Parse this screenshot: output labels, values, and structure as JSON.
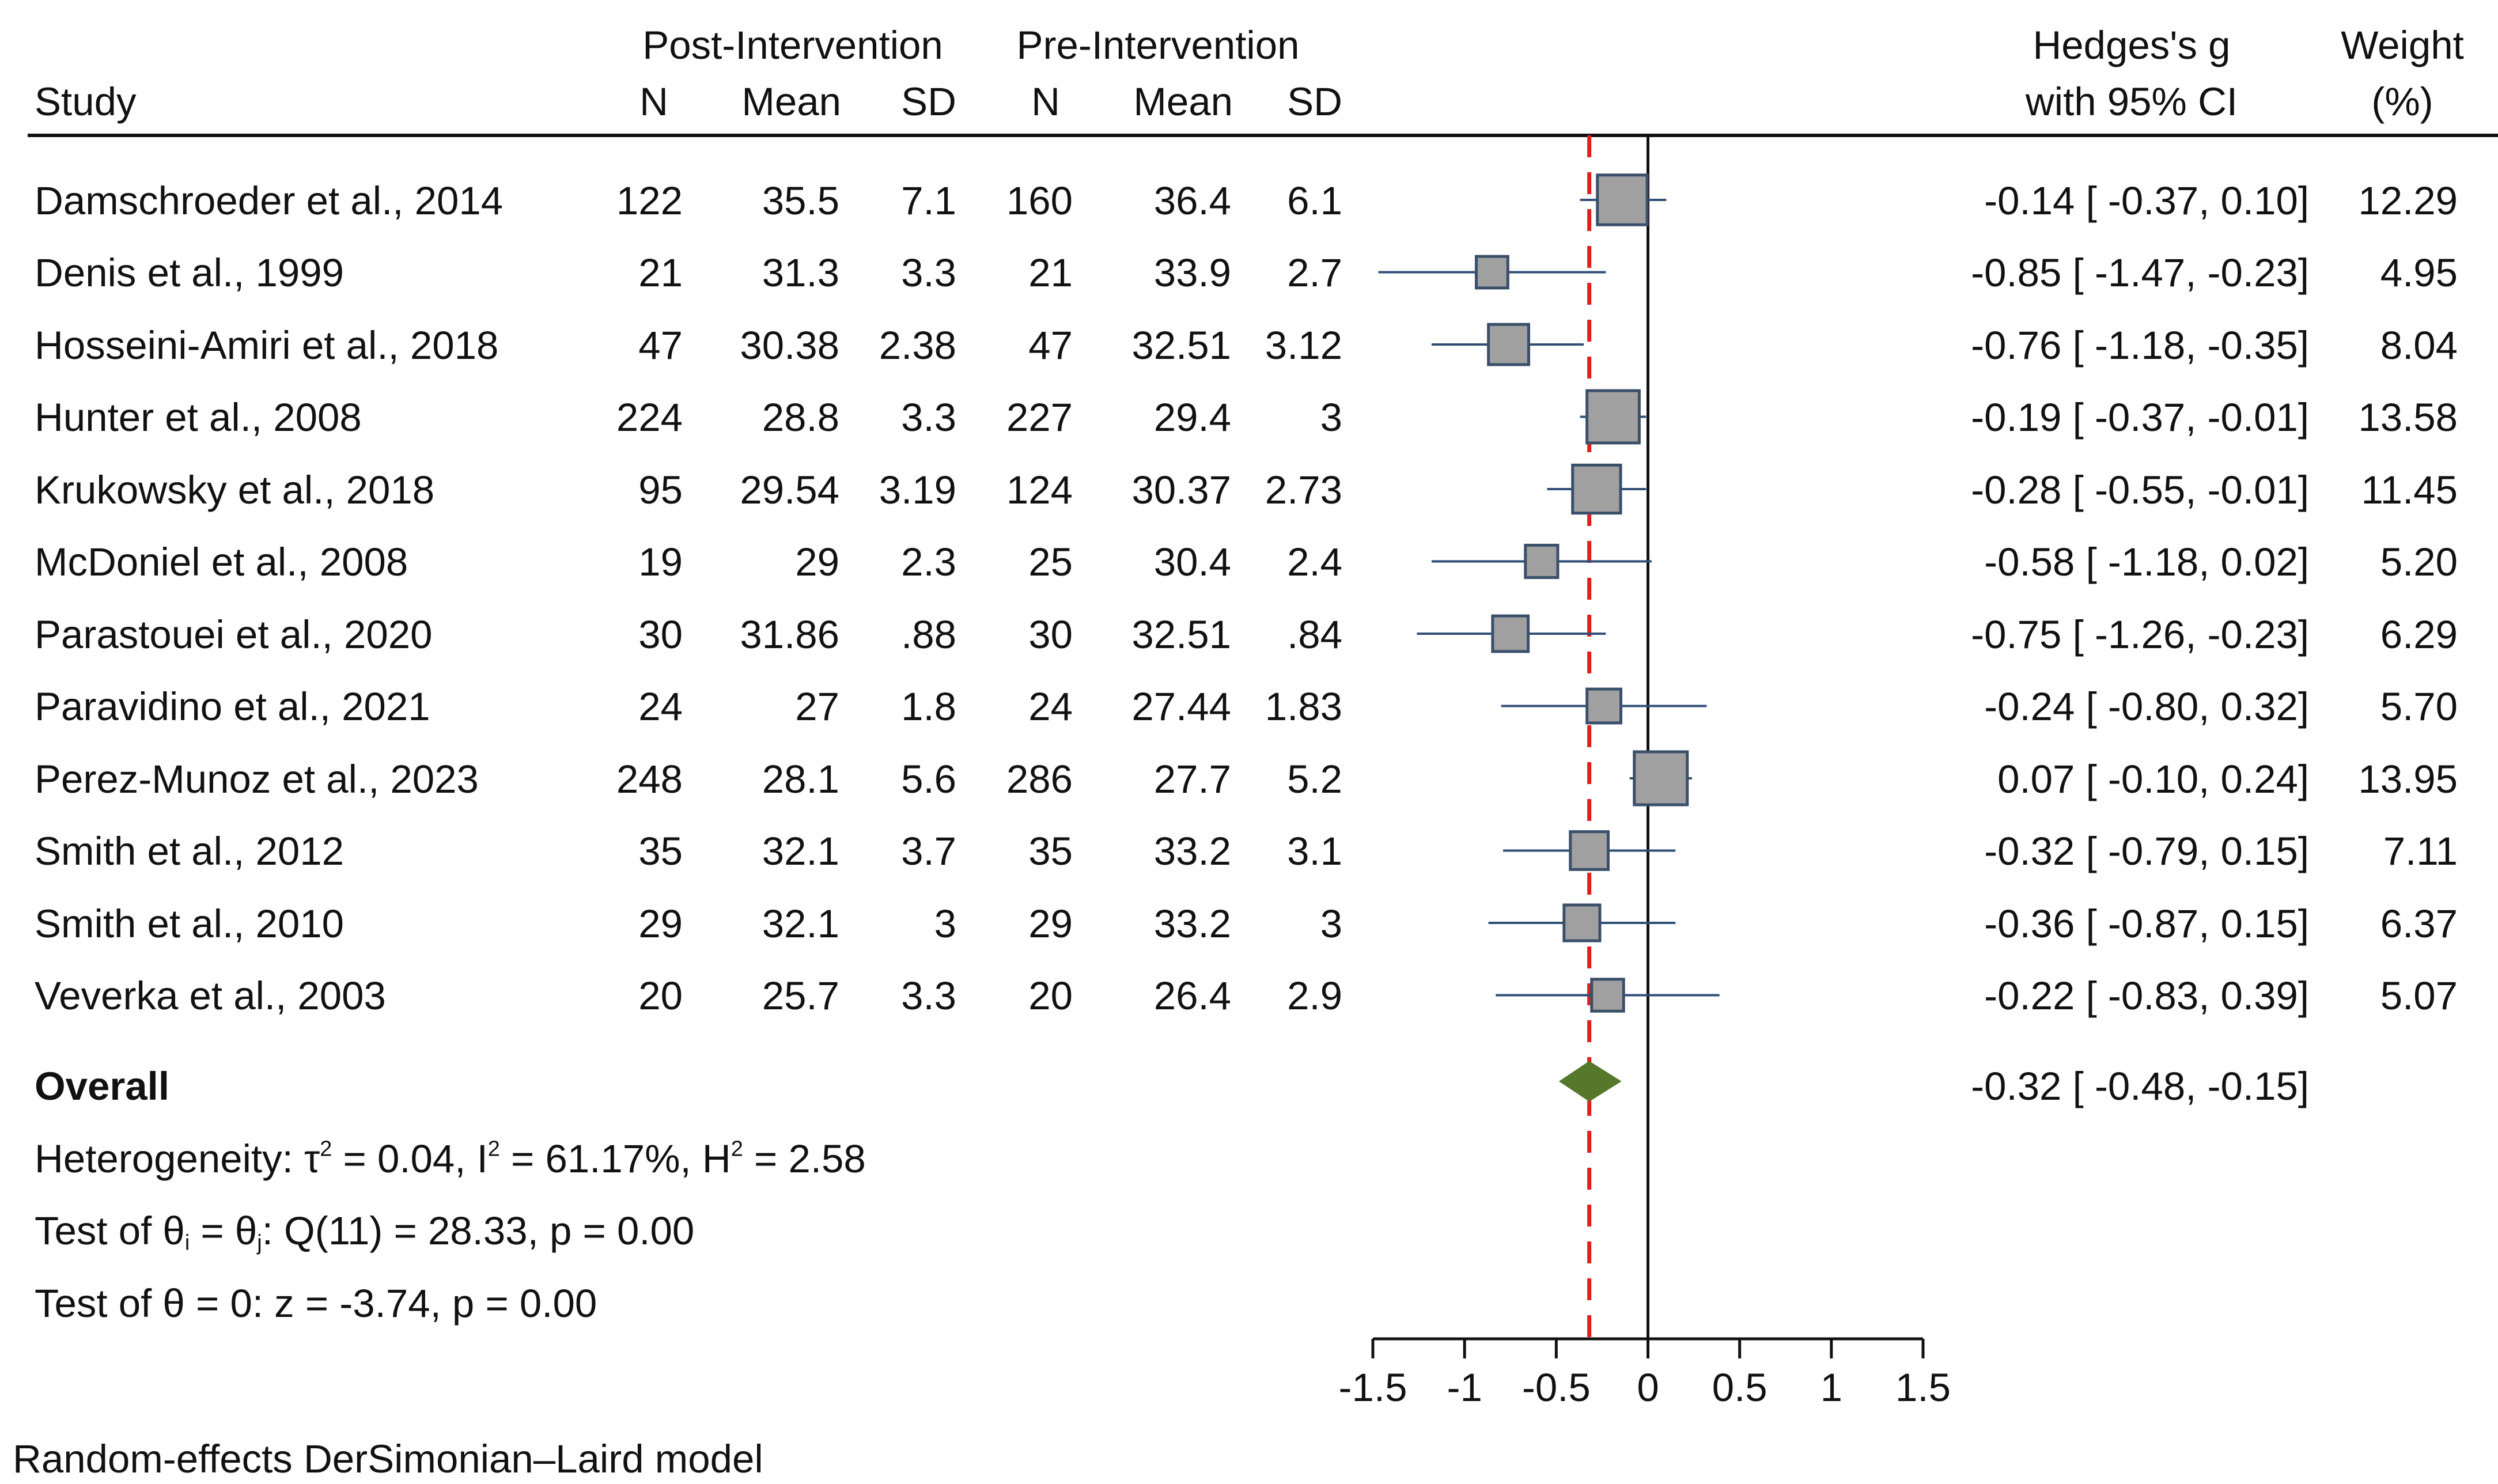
{
  "header": {
    "post_group": "Post-Intervention",
    "pre_group": "Pre-Intervention",
    "study": "Study",
    "n": "N",
    "mean": "Mean",
    "sd": "SD",
    "effect_line1": "Hedges's g",
    "effect_line2": "with 95% CI",
    "weight_line1": "Weight",
    "weight_line2": "(%)"
  },
  "studies": [
    {
      "name": "Damschroeder et al., 2014",
      "post_n": "122",
      "post_mean": "35.5",
      "post_sd": "7.1",
      "pre_n": "160",
      "pre_mean": "36.4",
      "pre_sd": "6.1",
      "g": -0.14,
      "lo": -0.37,
      "hi": 0.1,
      "ci_text": "-0.14 [ -0.37,  0.10]",
      "weight": "12.29"
    },
    {
      "name": "Denis et al., 1999",
      "post_n": "21",
      "post_mean": "31.3",
      "post_sd": "3.3",
      "pre_n": "21",
      "pre_mean": "33.9",
      "pre_sd": "2.7",
      "g": -0.85,
      "lo": -1.47,
      "hi": -0.23,
      "ci_text": "-0.85 [ -1.47, -0.23]",
      "weight": "4.95"
    },
    {
      "name": "Hosseini-Amiri et al., 2018",
      "post_n": "47",
      "post_mean": "30.38",
      "post_sd": "2.38",
      "pre_n": "47",
      "pre_mean": "32.51",
      "pre_sd": "3.12",
      "g": -0.76,
      "lo": -1.18,
      "hi": -0.35,
      "ci_text": "-0.76 [ -1.18, -0.35]",
      "weight": "8.04"
    },
    {
      "name": "Hunter et al., 2008",
      "post_n": "224",
      "post_mean": "28.8",
      "post_sd": "3.3",
      "pre_n": "227",
      "pre_mean": "29.4",
      "pre_sd": "3",
      "g": -0.19,
      "lo": -0.37,
      "hi": -0.01,
      "ci_text": "-0.19 [ -0.37, -0.01]",
      "weight": "13.58"
    },
    {
      "name": "Krukowsky et al., 2018",
      "post_n": "95",
      "post_mean": "29.54",
      "post_sd": "3.19",
      "pre_n": "124",
      "pre_mean": "30.37",
      "pre_sd": "2.73",
      "g": -0.28,
      "lo": -0.55,
      "hi": -0.01,
      "ci_text": "-0.28 [ -0.55, -0.01]",
      "weight": "11.45"
    },
    {
      "name": "McDoniel et al., 2008",
      "post_n": "19",
      "post_mean": "29",
      "post_sd": "2.3",
      "pre_n": "25",
      "pre_mean": "30.4",
      "pre_sd": "2.4",
      "g": -0.58,
      "lo": -1.18,
      "hi": 0.02,
      "ci_text": "-0.58 [ -1.18,  0.02]",
      "weight": "5.20"
    },
    {
      "name": "Parastouei et al., 2020",
      "post_n": "30",
      "post_mean": "31.86",
      "post_sd": ".88",
      "pre_n": "30",
      "pre_mean": "32.51",
      "pre_sd": ".84",
      "g": -0.75,
      "lo": -1.26,
      "hi": -0.23,
      "ci_text": "-0.75 [ -1.26, -0.23]",
      "weight": "6.29"
    },
    {
      "name": "Paravidino et al., 2021",
      "post_n": "24",
      "post_mean": "27",
      "post_sd": "1.8",
      "pre_n": "24",
      "pre_mean": "27.44",
      "pre_sd": "1.83",
      "g": -0.24,
      "lo": -0.8,
      "hi": 0.32,
      "ci_text": "-0.24 [ -0.80,  0.32]",
      "weight": "5.70"
    },
    {
      "name": "Perez-Munoz et al., 2023",
      "post_n": "248",
      "post_mean": "28.1",
      "post_sd": "5.6",
      "pre_n": "286",
      "pre_mean": "27.7",
      "pre_sd": "5.2",
      "g": 0.07,
      "lo": -0.1,
      "hi": 0.24,
      "ci_text": "0.07 [ -0.10,  0.24]",
      "weight": "13.95"
    },
    {
      "name": "Smith et al., 2012",
      "post_n": "35",
      "post_mean": "32.1",
      "post_sd": "3.7",
      "pre_n": "35",
      "pre_mean": "33.2",
      "pre_sd": "3.1",
      "g": -0.32,
      "lo": -0.79,
      "hi": 0.15,
      "ci_text": "-0.32 [ -0.79,  0.15]",
      "weight": "7.11"
    },
    {
      "name": "Smith et al., 2010",
      "post_n": "29",
      "post_mean": "32.1",
      "post_sd": "3",
      "pre_n": "29",
      "pre_mean": "33.2",
      "pre_sd": "3",
      "g": -0.36,
      "lo": -0.87,
      "hi": 0.15,
      "ci_text": "-0.36 [ -0.87,  0.15]",
      "weight": "6.37"
    },
    {
      "name": "Veverka et al., 2003",
      "post_n": "20",
      "post_mean": "25.7",
      "post_sd": "3.3",
      "pre_n": "20",
      "pre_mean": "26.4",
      "pre_sd": "2.9",
      "g": -0.22,
      "lo": -0.83,
      "hi": 0.39,
      "ci_text": "-0.22 [ -0.83,  0.39]",
      "weight": "5.07"
    }
  ],
  "overall": {
    "label": "Overall",
    "g": -0.32,
    "lo": -0.48,
    "hi": -0.15,
    "ci_text": "-0.32 [ -0.48, -0.15]"
  },
  "stats": {
    "het_prefix": "Heterogeneity: τ",
    "het_sup1": "2",
    "het_mid1": " = 0.04, I",
    "het_sup2": "2",
    "het_mid2": " = 61.17%, H",
    "het_sup3": "2",
    "het_end": " = 2.58",
    "test1_a": "Test of θ",
    "test1_sub1": "i",
    "test1_b": " = θ",
    "test1_sub2": "j",
    "test1_c": ": Q(11) = 28.33, p = 0.00",
    "test2": "Test of θ = 0: z = -3.74, p = 0.00"
  },
  "footnote": "Random-effects DerSimonian–Laird model",
  "chart_data": {
    "type": "forest",
    "xlim": [
      -1.5,
      1.5
    ],
    "xticks": [
      -1.5,
      -1,
      -0.5,
      0,
      0.5,
      1,
      1.5
    ],
    "xtick_labels": [
      "-1.5",
      "-1",
      "-0.5",
      "0",
      "0.5",
      "1",
      "1.5"
    ],
    "null_line": 0,
    "overall_line": -0.32
  },
  "colors": {
    "square_fill": "#a0a0a0",
    "square_stroke": "#3a4f6a",
    "ci_line": "#2f4f75",
    "diamond": "#55782b",
    "overall_line": "#e0201c",
    "axis": "#111111"
  }
}
